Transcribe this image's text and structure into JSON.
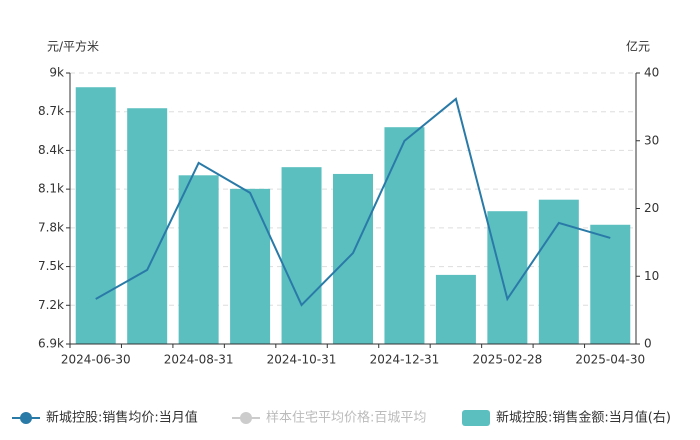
{
  "chart_data": {
    "type": "combo",
    "y_label": "元/平方米",
    "y2_label": "亿元",
    "categories": [
      "2024-06-30",
      null,
      "2024-08-31",
      null,
      "2024-10-31",
      null,
      "2024-12-31",
      null,
      "2025-02-28",
      null,
      "2025-04-30"
    ],
    "ylim": [
      6900,
      9000
    ],
    "yticks": [
      {
        "value": 6900,
        "label": "6.9k"
      },
      {
        "value": 7200,
        "label": "7.2k"
      },
      {
        "value": 7500,
        "label": "7.5k"
      },
      {
        "value": 7800,
        "label": "7.8k"
      },
      {
        "value": 8100,
        "label": "8.1k"
      },
      {
        "value": 8400,
        "label": "8.4k"
      },
      {
        "value": 8700,
        "label": "8.7k"
      },
      {
        "value": 9000,
        "label": "9k"
      }
    ],
    "y2lim": [
      0,
      40
    ],
    "y2ticks": [
      0,
      10,
      20,
      30,
      40
    ],
    "grid": true,
    "series": [
      {
        "name": "新城控股:销售均价:当月值",
        "type": "line",
        "color": "#2a7aa8",
        "values": [
          7249,
          7474,
          8303,
          8071,
          7202,
          7605,
          8474,
          8799,
          7249,
          7838,
          7722
        ]
      },
      {
        "name": "样本住宅平均价格:百城平均",
        "type": "line",
        "color": "#cccccc",
        "values": [
          null,
          null,
          null,
          null,
          null,
          null,
          null,
          null,
          null,
          null,
          null
        ]
      },
      {
        "name": "新城控股:销售金额:当月值(右)",
        "type": "bar",
        "axis": "y2",
        "color": "#5bbfc0",
        "values": [
          37.9,
          34.8,
          24.9,
          22.9,
          26.1,
          25.1,
          32.0,
          10.2,
          19.6,
          21.3,
          17.6
        ]
      }
    ]
  }
}
